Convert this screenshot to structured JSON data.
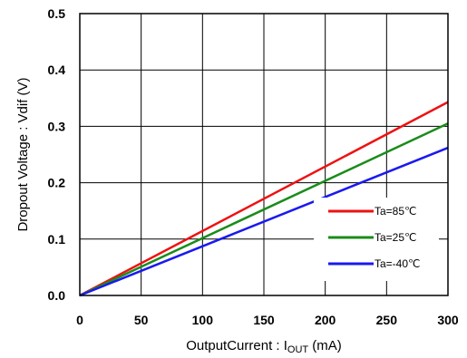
{
  "chart_data": {
    "type": "line",
    "xlabel": "OutputCurrent : I",
    "xlabel_sub": "OUT",
    "xlabel_unit": " (mA)",
    "ylabel": "Dropout Voltage : Vdif (V)",
    "xlim": [
      0,
      300
    ],
    "ylim": [
      0,
      0.5
    ],
    "x_ticks": [
      "0",
      "50",
      "100",
      "150",
      "200",
      "250",
      "300"
    ],
    "y_ticks": [
      "0.0",
      "0.1",
      "0.2",
      "0.3",
      "0.4",
      "0.5"
    ],
    "grid": true,
    "legend_position": "lower-right",
    "series": [
      {
        "name": "Ta=85℃",
        "color": "#ee1111",
        "x": [
          0,
          300
        ],
        "y": [
          0,
          0.343
        ]
      },
      {
        "name": "Ta=25℃",
        "color": "#1a8c1a",
        "x": [
          0,
          300
        ],
        "y": [
          0,
          0.305
        ]
      },
      {
        "name": "Ta=-40℃",
        "color": "#1a1aee",
        "x": [
          0,
          300
        ],
        "y": [
          0,
          0.262
        ]
      }
    ]
  }
}
